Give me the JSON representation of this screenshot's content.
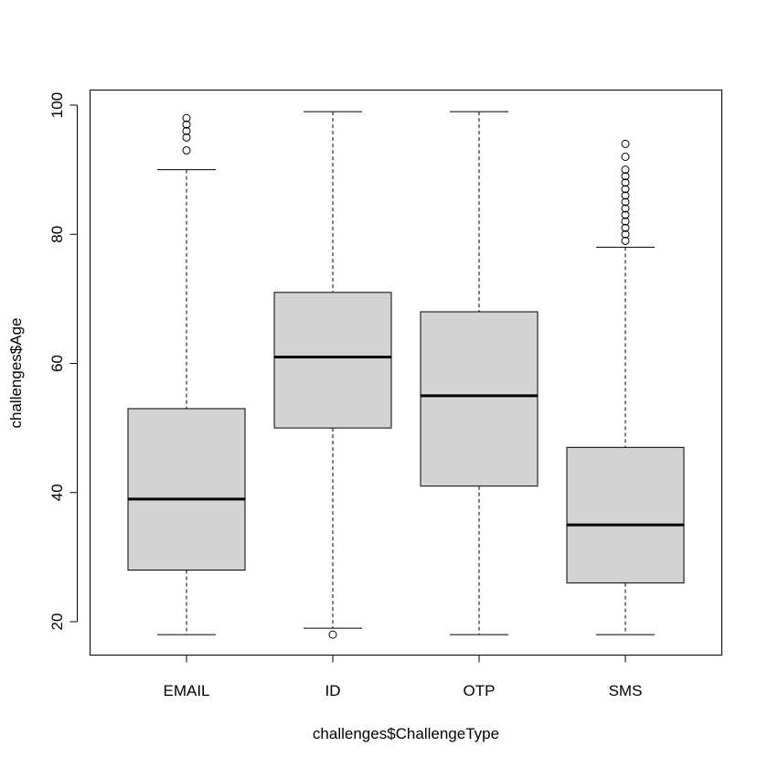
{
  "chart_data": {
    "type": "boxplot",
    "title": "",
    "xlabel": "challenges$ChallengeType",
    "ylabel": "challenges$Age",
    "ylim": [
      15,
      102
    ],
    "yticks": [
      20,
      40,
      60,
      80,
      100
    ],
    "grid": false,
    "categories": [
      "EMAIL",
      "ID",
      "OTP",
      "SMS"
    ],
    "box_fill": "#d3d3d3",
    "stroke": "#000000",
    "boxes": [
      {
        "category": "EMAIL",
        "whisker_low": 18,
        "q1": 28,
        "median": 39,
        "q3": 53,
        "whisker_high": 90,
        "outliers": [
          93,
          95,
          96,
          97,
          98
        ]
      },
      {
        "category": "ID",
        "whisker_low": 19,
        "q1": 50,
        "median": 61,
        "q3": 71,
        "whisker_high": 99,
        "outliers": [
          18
        ]
      },
      {
        "category": "OTP",
        "whisker_low": 18,
        "q1": 41,
        "median": 55,
        "q3": 68,
        "whisker_high": 99,
        "outliers": []
      },
      {
        "category": "SMS",
        "whisker_low": 18,
        "q1": 26,
        "median": 35,
        "q3": 47,
        "whisker_high": 78,
        "outliers": [
          79,
          80,
          81,
          82,
          83,
          84,
          85,
          86,
          87,
          88,
          89,
          90,
          92,
          94
        ]
      }
    ]
  }
}
